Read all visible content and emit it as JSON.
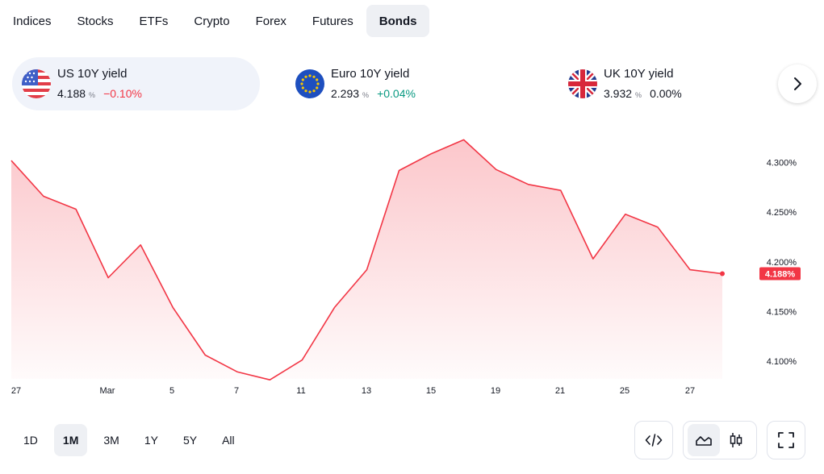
{
  "tabs": [
    {
      "label": "Indices"
    },
    {
      "label": "Stocks"
    },
    {
      "label": "ETFs"
    },
    {
      "label": "Crypto"
    },
    {
      "label": "Forex"
    },
    {
      "label": "Futures"
    },
    {
      "label": "Bonds",
      "active": true
    }
  ],
  "cards": [
    {
      "name": "US 10Y yield",
      "value": "4.188",
      "unit": "%",
      "change": "−0.10%",
      "trend": "negative",
      "flag": "us-flag-icon",
      "active": true
    },
    {
      "name": "Euro 10Y yield",
      "value": "2.293",
      "unit": "%",
      "change": "+0.04%",
      "trend": "positive",
      "flag": "eu-flag-icon"
    },
    {
      "name": "UK 10Y yield",
      "value": "3.932",
      "unit": "%",
      "change": "0.00%",
      "trend": "neutral",
      "flag": "uk-flag-icon"
    }
  ],
  "next_icon": "chevron-right-icon",
  "colors": {
    "accent_line": "#f23645",
    "positive": "#089981",
    "negative": "#f23645"
  },
  "chart_data": {
    "type": "area",
    "x_tick_labels": [
      "27",
      "Mar",
      "5",
      "7",
      "11",
      "13",
      "15",
      "19",
      "21",
      "25",
      "27"
    ],
    "y_tick_labels": [
      "4.300%",
      "4.250%",
      "4.200%",
      "4.150%",
      "4.100%"
    ],
    "y_ticks": [
      4.3,
      4.25,
      4.2,
      4.15,
      4.1
    ],
    "ylim": [
      4.082,
      4.342
    ],
    "series": [
      {
        "values": [
          4.302,
          4.266,
          4.253,
          4.184,
          4.217,
          4.154,
          4.106,
          4.089,
          4.081,
          4.101,
          4.154,
          4.192,
          4.292,
          4.309,
          4.323,
          4.293,
          4.278,
          4.272,
          4.203,
          4.248,
          4.235,
          4.192,
          4.188
        ]
      }
    ],
    "last_value_label": "4.188%",
    "grid": false
  },
  "ranges": [
    {
      "label": "1D"
    },
    {
      "label": "1M",
      "active": true
    },
    {
      "label": "3M"
    },
    {
      "label": "1Y"
    },
    {
      "label": "5Y"
    },
    {
      "label": "All"
    }
  ],
  "tools": {
    "embed_icon": "code-icon",
    "area_icon": "area-chart-icon",
    "candles_icon": "candlestick-icon",
    "fullscreen_icon": "fullscreen-icon"
  }
}
